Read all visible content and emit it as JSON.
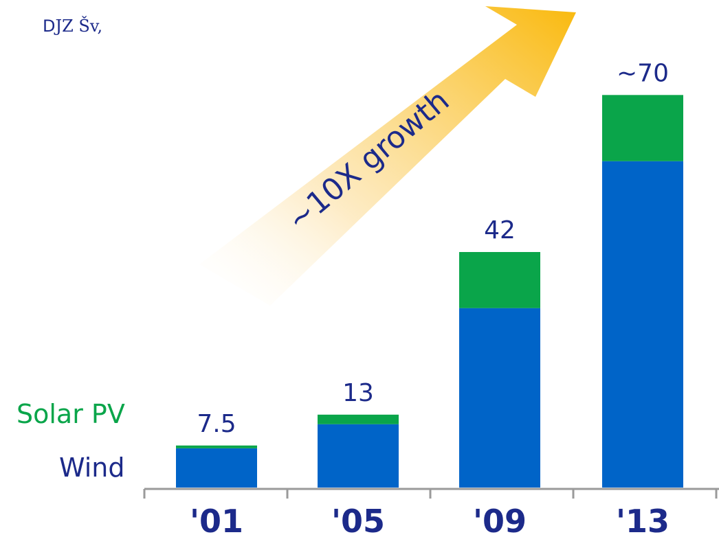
{
  "header_glyphs": "ꓓJZ Šv,",
  "chart_data": {
    "type": "bar",
    "stacked": true,
    "categories": [
      "'01",
      "'05",
      "'09",
      "'13"
    ],
    "series": [
      {
        "name": "Wind",
        "values": [
          7,
          11.3,
          32,
          58.2
        ],
        "color": "#0064c8"
      },
      {
        "name": "Solar PV",
        "values": [
          0.5,
          1.7,
          10,
          11.8
        ],
        "color": "#0aa54a"
      }
    ],
    "totals": [
      7.5,
      13,
      42,
      70
    ],
    "total_labels": [
      "7.5",
      "13",
      "42",
      "~70"
    ],
    "annotation": "~10X growth",
    "ylim": [
      0,
      72
    ],
    "legend_position": "left, beside first bar",
    "grid": false,
    "xlabel": "",
    "ylabel": "",
    "title": ""
  }
}
